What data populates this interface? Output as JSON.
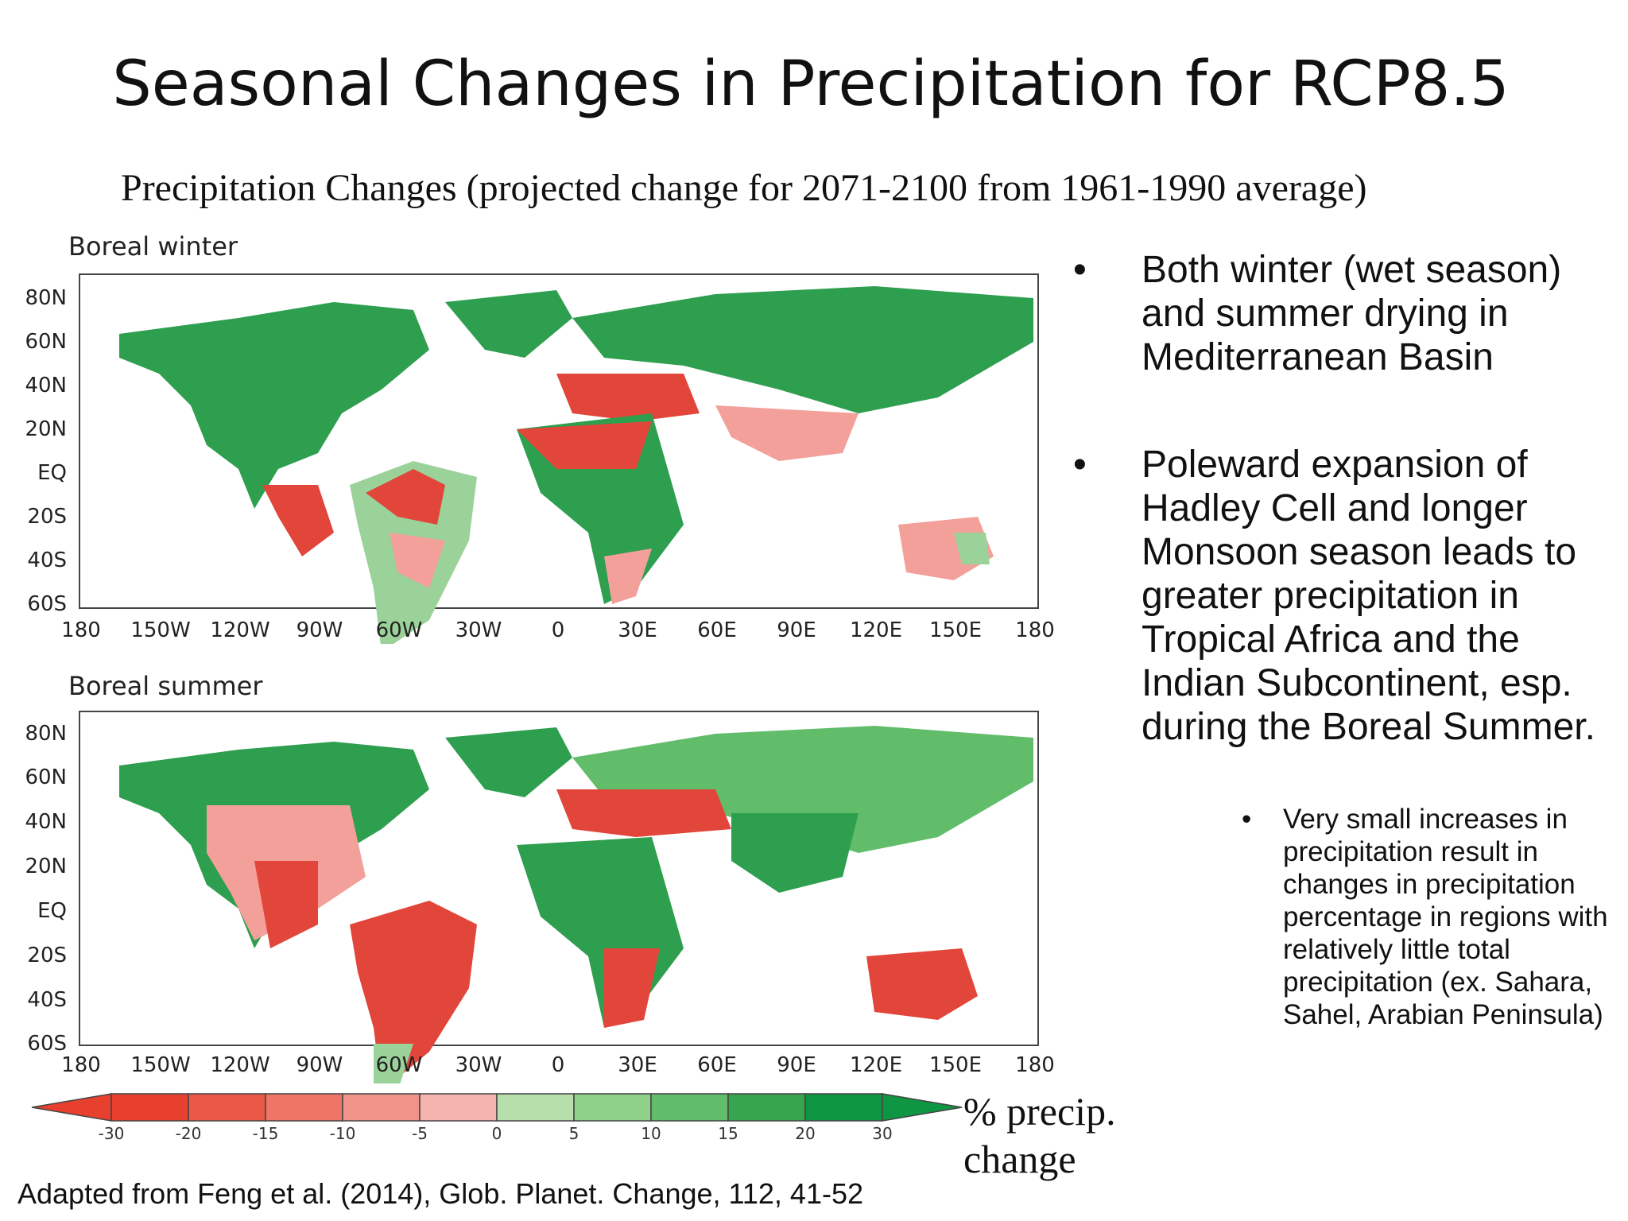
{
  "slide": {
    "title": "Seasonal Changes in Precipitation for RCP8.5",
    "subtitle": "Precipitation Changes (projected change for 2071-2100 from 1961-1990 average)",
    "credit": "Adapted from Feng et al. (2014), Glob. Planet. Change, 112, 41-52"
  },
  "maps": [
    {
      "title": "Boreal winter"
    },
    {
      "title": "Boreal summer"
    }
  ],
  "axes": {
    "lat_ticks": [
      "80N",
      "60N",
      "40N",
      "20N",
      "EQ",
      "20S",
      "40S",
      "60S"
    ],
    "lon_ticks": [
      "180",
      "150W",
      "120W",
      "90W",
      "60W",
      "30W",
      "0",
      "30E",
      "60E",
      "90E",
      "120E",
      "150E",
      "180"
    ]
  },
  "colorbar": {
    "ticks": [
      "-30",
      "-20",
      "-15",
      "-10",
      "-5",
      "0",
      "5",
      "10",
      "15",
      "20",
      "30"
    ],
    "colors": [
      "#e8402e",
      "#ec5848",
      "#ef7566",
      "#f2938a",
      "#f5b4ae",
      "#b6dfac",
      "#8fd08a",
      "#62bd6a",
      "#37a54d",
      "#0f9642"
    ],
    "label": "% precip. change"
  },
  "bullets": [
    {
      "marker": "•",
      "text": "Both winter (wet season) and summer drying in Mediterranean Basin"
    },
    {
      "marker": "•",
      "text": "Poleward expansion of Hadley Cell and longer Monsoon season leads to greater precipitation in Tropical Africa and the Indian Subcontinent, esp. during the Boreal Summer."
    }
  ],
  "sub_bullet": {
    "marker": "•",
    "text": "Very small increases in precipitation result in changes in precipitation percentage in regions with relatively little total precipitation (ex. Sahara, Sahel, Arabian Peninsula)"
  },
  "palette": {
    "wet": "#2e9e4f",
    "dry": "#e2453a",
    "light_dry": "#f3a09a",
    "light_wet": "#9bd29a"
  }
}
